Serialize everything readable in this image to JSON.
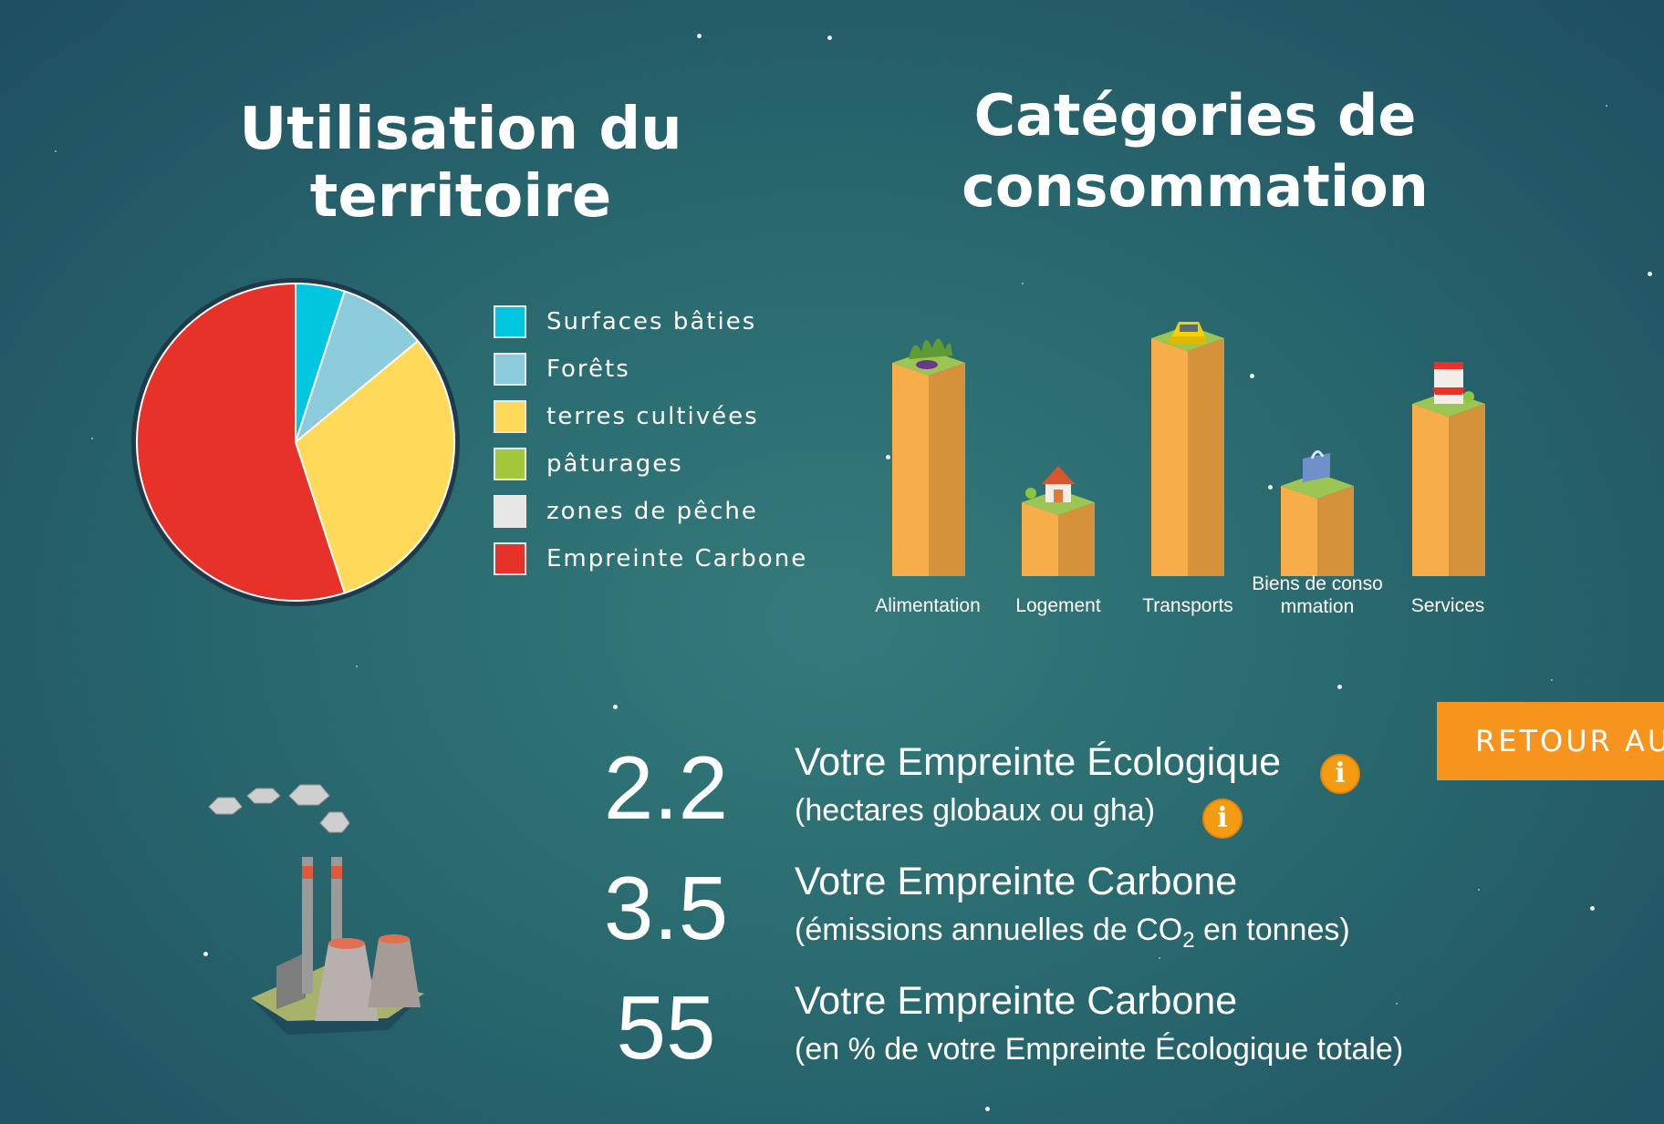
{
  "land_use": {
    "title": "Utilisation du territoire",
    "legend": [
      {
        "label": "Surfaces bâties",
        "color": "#00c6e0"
      },
      {
        "label": "Forêts",
        "color": "#8ccbdc"
      },
      {
        "label": "terres cultivées",
        "color": "#ffd95a"
      },
      {
        "label": "pâturages",
        "color": "#a2c73b"
      },
      {
        "label": "zones de pêche",
        "color": "#e6e6e6"
      },
      {
        "label": "Empreinte Carbone",
        "color": "#e63228"
      }
    ]
  },
  "consumption": {
    "title_line1": "Catégories de",
    "title_line2": "consommation",
    "categories": [
      {
        "label": "Alimentation",
        "icon": "vegetables-icon"
      },
      {
        "label": "Logement",
        "icon": "house-icon"
      },
      {
        "label": "Transports",
        "icon": "car-icon"
      },
      {
        "label_line1": "Biens de conso",
        "label_line2": "mmation",
        "icon": "shopping-bag-icon"
      },
      {
        "label": "Services",
        "icon": "shop-icon"
      }
    ]
  },
  "chart_data": [
    {
      "type": "pie",
      "title": "Utilisation du territoire",
      "categories": [
        "Surfaces bâties",
        "Forêts",
        "terres cultivées",
        "pâturages",
        "zones de pêche",
        "Empreinte Carbone"
      ],
      "values": [
        5,
        9,
        31,
        0,
        0,
        55
      ],
      "colors": [
        "#00c6e0",
        "#8ccbdc",
        "#ffd95a",
        "#a2c73b",
        "#e6e6e6",
        "#e63228"
      ],
      "legend": "right"
    },
    {
      "type": "bar",
      "title": "Catégories de consommation",
      "categories": [
        "Alimentation",
        "Logement",
        "Transports",
        "Biens de consommation",
        "Services"
      ],
      "values": [
        26,
        9,
        29,
        11,
        21
      ],
      "color": "#f7ae4a"
    }
  ],
  "metrics": [
    {
      "value": "2.2",
      "title": "Votre Empreinte Écologique",
      "subtitle": "(hectares globaux ou gha)"
    },
    {
      "value": "3.5",
      "title": "Votre Empreinte Carbone",
      "subtitle_pre": "(émissions annuelles de CO",
      "subtitle_sub": "2",
      "subtitle_post": " en tonnes)"
    },
    {
      "value": "55",
      "title": "Votre Empreinte Carbone",
      "subtitle": "(en % de votre Empreinte Écologique totale)"
    }
  ],
  "info_icon": "i",
  "retour_button": "RETOUR AU"
}
